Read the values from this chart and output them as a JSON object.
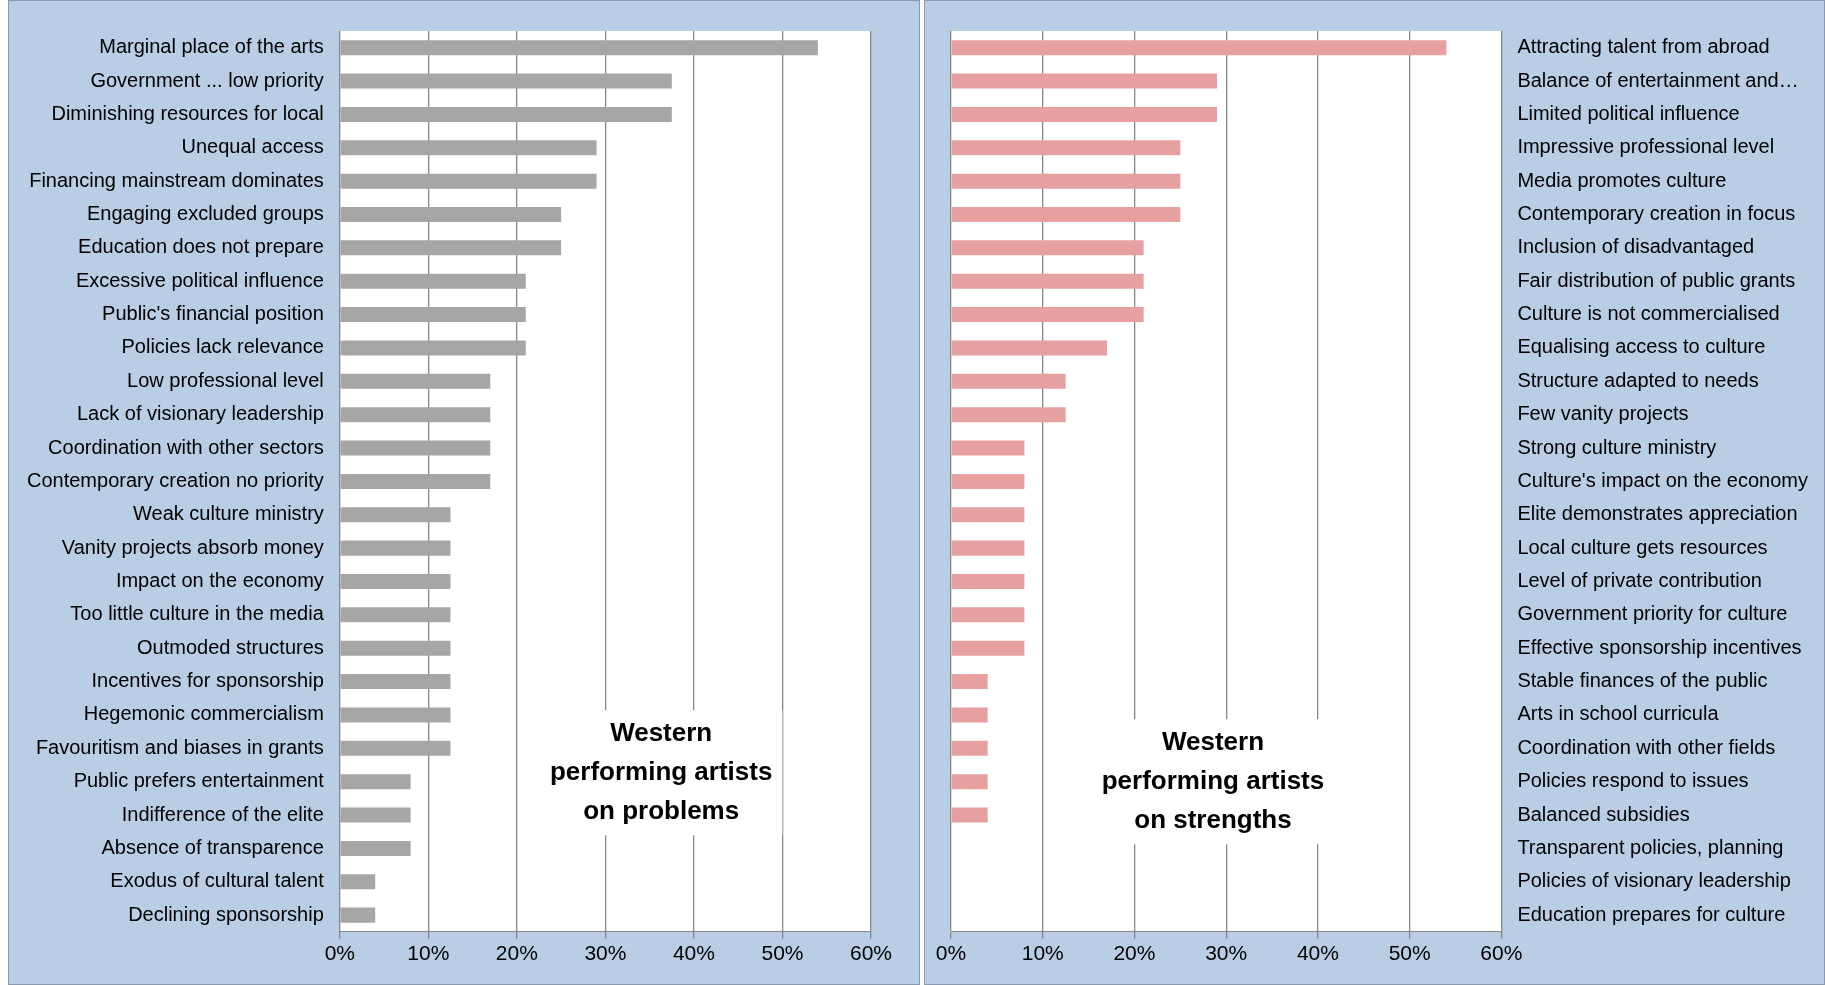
{
  "chart_data": [
    {
      "type": "bar",
      "orientation": "horizontal",
      "title": "Western performing artists on problems",
      "categories": [
        "Marginal place of the arts",
        "Government ... low priority",
        "Diminishing resources for local",
        "Unequal access",
        "Financing mainstream dominates",
        "Engaging excluded groups",
        "Education does not prepare",
        "Excessive political influence",
        "Public's financial position",
        "Policies lack relevance",
        "Low professional level",
        "Lack of visionary leadership",
        "Coordination with other sectors",
        "Contemporary creation no priority",
        "Weak culture ministry",
        "Vanity projects absorb money",
        "Impact on the economy",
        "Too little culture in the media",
        "Outmoded structures",
        "Incentives for sponsorship",
        "Hegemonic commercialism",
        "Favouritism and biases in grants",
        "Public prefers entertainment",
        "Indifference of the elite",
        "Absence of transparence",
        "Exodus of cultural talent",
        "Declining sponsorship"
      ],
      "values": [
        54,
        37.5,
        37.5,
        29,
        29,
        25,
        25,
        21,
        21,
        21,
        17,
        17,
        17,
        17,
        12.5,
        12.5,
        12.5,
        12.5,
        12.5,
        12.5,
        12.5,
        12.5,
        8,
        8,
        8,
        4,
        4
      ],
      "color": "#a6a6a6",
      "xlim": [
        0,
        60
      ],
      "xticks": [
        {
          "value": 0,
          "label": "0%"
        },
        {
          "value": 10,
          "label": "10%"
        },
        {
          "value": 20,
          "label": "20%"
        },
        {
          "value": 30,
          "label": "30%"
        },
        {
          "value": 40,
          "label": "40%"
        },
        {
          "value": 50,
          "label": "50%"
        },
        {
          "value": 60,
          "label": "60%"
        }
      ],
      "grid": "x",
      "legend": false
    },
    {
      "type": "bar",
      "orientation": "horizontal",
      "title": "Western performing artists on strengths",
      "categories": [
        "Attracting talent from abroad",
        "Balance of entertainment and…",
        "Limited political influence",
        "Impressive professional level",
        "Media promotes culture",
        "Contemporary creation in focus",
        "Inclusion of disadvantaged",
        "Fair distribution of public grants",
        "Culture is not commercialised",
        "Equalising access to culture",
        "Structure adapted to needs",
        "Few vanity projects",
        "Strong culture ministry",
        "Culture's impact on the economy",
        "Elite demonstrates appreciation",
        "Local culture gets resources",
        "Level of private contribution",
        "Government priority for culture",
        "Effective sponsorship incentives",
        "Stable finances of the public",
        "Arts in school curricula",
        "Coordination with other fields",
        "Policies respond to issues",
        "Balanced subsidies",
        "Transparent policies, planning",
        "Policies of visionary leadership",
        "Education prepares for culture"
      ],
      "values": [
        54,
        29,
        29,
        25,
        25,
        25,
        21,
        21,
        21,
        17,
        12.5,
        12.5,
        8,
        8,
        8,
        8,
        8,
        8,
        8,
        4,
        4,
        4,
        4,
        4,
        0,
        0,
        0
      ],
      "color": "#e6a0a0",
      "xlim": [
        0,
        60
      ],
      "xticks": [
        {
          "value": 0,
          "label": "0%"
        },
        {
          "value": 10,
          "label": "10%"
        },
        {
          "value": 20,
          "label": "20%"
        },
        {
          "value": 30,
          "label": "30%"
        },
        {
          "value": 40,
          "label": "40%"
        },
        {
          "value": 50,
          "label": "50%"
        },
        {
          "value": 60,
          "label": "60%"
        }
      ],
      "grid": "x",
      "legend": false
    }
  ]
}
